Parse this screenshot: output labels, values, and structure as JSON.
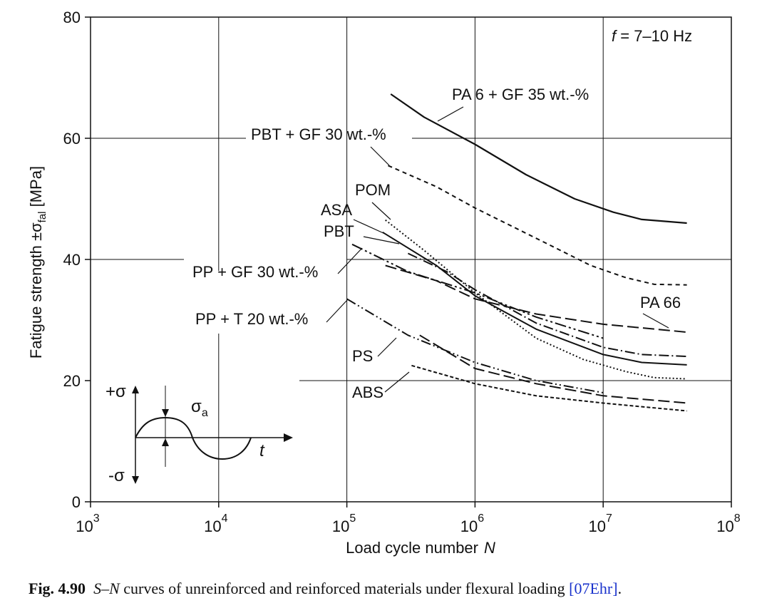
{
  "chart_data": {
    "type": "line",
    "x_scale": "log",
    "xlim": [
      1000,
      100000000
    ],
    "ylim": [
      0,
      80
    ],
    "x_ticks": [
      {
        "value": 1000,
        "base": "10",
        "exp": "3"
      },
      {
        "value": 10000,
        "base": "10",
        "exp": "4"
      },
      {
        "value": 100000,
        "base": "10",
        "exp": "5"
      },
      {
        "value": 1000000,
        "base": "10",
        "exp": "6"
      },
      {
        "value": 10000000,
        "base": "10",
        "exp": "7"
      },
      {
        "value": 100000000,
        "base": "10",
        "exp": "8"
      }
    ],
    "y_ticks": [
      "0",
      "20",
      "40",
      "60",
      "80"
    ],
    "grid": true,
    "xlabel": "Load cycle number",
    "xlabel_var": "N",
    "ylabel": "Fatigue strength  ±σ",
    "ylabel_sub": "fal",
    "ylabel_unit": "  [MPa]",
    "note_var": "f",
    "note_text": " = 7–10 Hz",
    "series": [
      {
        "name": "PA 6 + GF 35 wt.-%",
        "dash": "solid",
        "width": 2.2,
        "points": [
          [
            220000,
            67.3
          ],
          [
            400000,
            63.5
          ],
          [
            1000000,
            59.0
          ],
          [
            2500000,
            54.0
          ],
          [
            6000000,
            50.0
          ],
          [
            12000000,
            47.8
          ],
          [
            20000000,
            46.6
          ],
          [
            45000000,
            46.0
          ]
        ]
      },
      {
        "name": "PBT + GF 30 wt.-%",
        "dash": "6 5",
        "width": 2,
        "points": [
          [
            210000,
            55.5
          ],
          [
            500000,
            52.0
          ],
          [
            1000000,
            48.5
          ],
          [
            3000000,
            43.5
          ],
          [
            8000000,
            39.0
          ],
          [
            15000000,
            37.0
          ],
          [
            25000000,
            35.9
          ],
          [
            45000000,
            35.8
          ]
        ]
      },
      {
        "name": "POM",
        "dash": "2 3",
        "width": 2,
        "points": [
          [
            200000,
            46.5
          ],
          [
            400000,
            41.5
          ],
          [
            1000000,
            34.5
          ],
          [
            3000000,
            27.0
          ],
          [
            7000000,
            23.5
          ],
          [
            15000000,
            21.5
          ],
          [
            25000000,
            20.5
          ],
          [
            45000000,
            20.3
          ]
        ]
      },
      {
        "name": "ASA",
        "dash": "solid",
        "width": 2,
        "points": [
          [
            190000,
            44.5
          ],
          [
            500000,
            39.0
          ],
          [
            1000000,
            34.0
          ],
          [
            3000000,
            28.5
          ],
          [
            10000000,
            24.3
          ],
          [
            20000000,
            23.0
          ],
          [
            45000000,
            22.6
          ]
        ]
      },
      {
        "name": "PBT",
        "dash": "14 4 2 4",
        "width": 2,
        "points": [
          [
            300000,
            41.0
          ],
          [
            600000,
            38.0
          ],
          [
            1000000,
            35.0
          ],
          [
            3000000,
            29.5
          ],
          [
            10000000,
            25.5
          ],
          [
            20000000,
            24.3
          ],
          [
            45000000,
            24.0
          ]
        ]
      },
      {
        "name": "PP + GF 30 wt.-%",
        "dash": "16 4 3 4 3 4",
        "width": 2,
        "points": [
          [
            110000,
            42.5
          ],
          [
            300000,
            38.0
          ],
          [
            1000000,
            34.5
          ],
          [
            3000000,
            30.5
          ],
          [
            10000000,
            27.0
          ]
        ]
      },
      {
        "name": "PA 66",
        "dash": "16 6",
        "width": 2,
        "points": [
          [
            200000,
            39.0
          ],
          [
            500000,
            36.5
          ],
          [
            1000000,
            33.5
          ],
          [
            3000000,
            31.0
          ],
          [
            10000000,
            29.3
          ],
          [
            45000000,
            28.0
          ]
        ]
      },
      {
        "name": "PP + T 20 wt.-%",
        "dash": "14 4 2 4 2 4",
        "width": 2,
        "points": [
          [
            100000,
            33.5
          ],
          [
            300000,
            27.5
          ],
          [
            1000000,
            23.0
          ],
          [
            3000000,
            20.0
          ],
          [
            10000000,
            18.0
          ]
        ]
      },
      {
        "name": "PS",
        "dash": "16 6",
        "width": 2,
        "points": [
          [
            370000,
            27.5
          ],
          [
            1000000,
            22.0
          ],
          [
            3000000,
            19.5
          ],
          [
            10000000,
            17.5
          ],
          [
            45000000,
            16.3
          ]
        ]
      },
      {
        "name": "ABS",
        "dash": "5 3",
        "width": 2,
        "points": [
          [
            320000,
            22.5
          ],
          [
            1000000,
            19.5
          ],
          [
            3000000,
            17.5
          ],
          [
            10000000,
            16.3
          ],
          [
            45000000,
            15.0
          ]
        ]
      }
    ]
  },
  "inset": {
    "plus_sigma": "+σ",
    "minus_sigma": "-σ",
    "sigma_a": "σ",
    "sigma_a_sub": "a",
    "time_label": "t"
  },
  "caption": {
    "fig_number": "Fig. 4.90",
    "title_italic": "S–N",
    "title_rest": " curves of unreinforced and reinforced materials under flexural loading ",
    "reference": "[07Ehr]",
    "period": "."
  }
}
